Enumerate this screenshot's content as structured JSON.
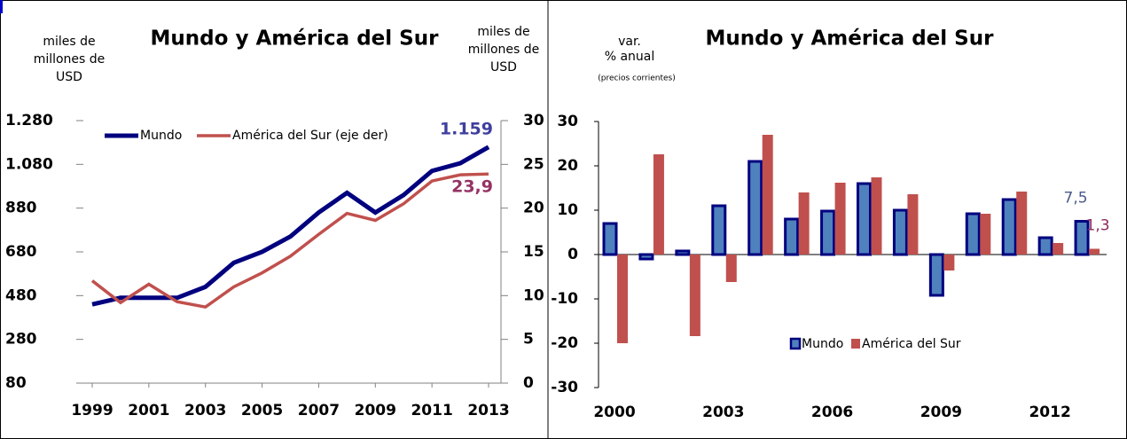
{
  "chart_data": [
    {
      "type": "line",
      "title": "Mundo y América del Sur",
      "y_label": [
        "miles de",
        "millones de",
        "USD"
      ],
      "y2_label": [
        "miles de",
        "millones de",
        "USD"
      ],
      "x": [
        1999,
        2000,
        2001,
        2002,
        2003,
        2004,
        2005,
        2006,
        2007,
        2008,
        2009,
        2010,
        2011,
        2012,
        2013
      ],
      "xlim": [
        1999,
        2013
      ],
      "xticks": [
        1999,
        2001,
        2003,
        2005,
        2007,
        2009,
        2011,
        2013
      ],
      "ylim": [
        80,
        1280
      ],
      "yticks": [
        {
          "value": 80,
          "label": "80"
        },
        {
          "value": 280,
          "label": "280"
        },
        {
          "value": 480,
          "label": "480"
        },
        {
          "value": 680,
          "label": "680"
        },
        {
          "value": 880,
          "label": "880"
        },
        {
          "value": 1080,
          "label": "1.080"
        },
        {
          "value": 1280,
          "label": "1.280"
        }
      ],
      "y2lim": [
        0,
        30
      ],
      "y2ticks": [
        0,
        5,
        10,
        15,
        20,
        25,
        30
      ],
      "legend": "top-left",
      "series": [
        {
          "name": "Mundo",
          "color": "#00007f",
          "label_color": "#3f3f9f",
          "values": [
            440,
            470,
            470,
            470,
            520,
            630,
            680,
            750,
            860,
            950,
            860,
            940,
            1050,
            1085,
            1159
          ],
          "value_labels": [
            null,
            null,
            null,
            null,
            null,
            null,
            null,
            null,
            null,
            null,
            null,
            null,
            null,
            null,
            "1.159"
          ]
        },
        {
          "name": "América del Sur (eje der)",
          "color": "#c0504d",
          "label_color": "#953264",
          "axis": "y2",
          "values": [
            11.7,
            9.2,
            11.3,
            9.3,
            8.7,
            11,
            12.6,
            14.5,
            17,
            19.4,
            18.6,
            20.5,
            23.1,
            23.8,
            23.9
          ],
          "value_labels": [
            null,
            null,
            null,
            null,
            null,
            null,
            null,
            null,
            null,
            null,
            null,
            null,
            null,
            null,
            "23,9"
          ]
        }
      ]
    },
    {
      "type": "bar",
      "title": "Mundo y América del Sur",
      "y_label": [
        "var.",
        "% anual"
      ],
      "y_sublabel": "(precios corrientes)",
      "categories": [
        "2000",
        null,
        null,
        "2003",
        null,
        null,
        "2006",
        null,
        null,
        "2009",
        null,
        null,
        "2012",
        null
      ],
      "ylim": [
        -30,
        30
      ],
      "yticks": [
        -30,
        -20,
        -10,
        0,
        10,
        20,
        30
      ],
      "legend": "bottom-center",
      "series": [
        {
          "name": "Mundo",
          "color": "#4f81bd",
          "edge": "#00007f",
          "label_color": "#4a5a8a",
          "values": [
            7,
            -1,
            0.8,
            11,
            21,
            8,
            9.8,
            16,
            10,
            -9.2,
            9.2,
            12.4,
            3.8,
            7.5
          ],
          "value_labels": [
            null,
            null,
            null,
            null,
            null,
            null,
            null,
            null,
            null,
            null,
            null,
            null,
            null,
            "7,5"
          ]
        },
        {
          "name": "América del Sur",
          "color": "#c0504d",
          "label_color": "#8b2a5a",
          "values": [
            -20,
            22.6,
            -18.4,
            -6.2,
            27,
            14,
            16.2,
            17.4,
            13.6,
            -3.6,
            9.2,
            14.2,
            2.6,
            1.3
          ],
          "value_labels": [
            null,
            null,
            null,
            null,
            null,
            null,
            null,
            null,
            null,
            null,
            null,
            null,
            null,
            "1,3"
          ]
        }
      ]
    }
  ]
}
